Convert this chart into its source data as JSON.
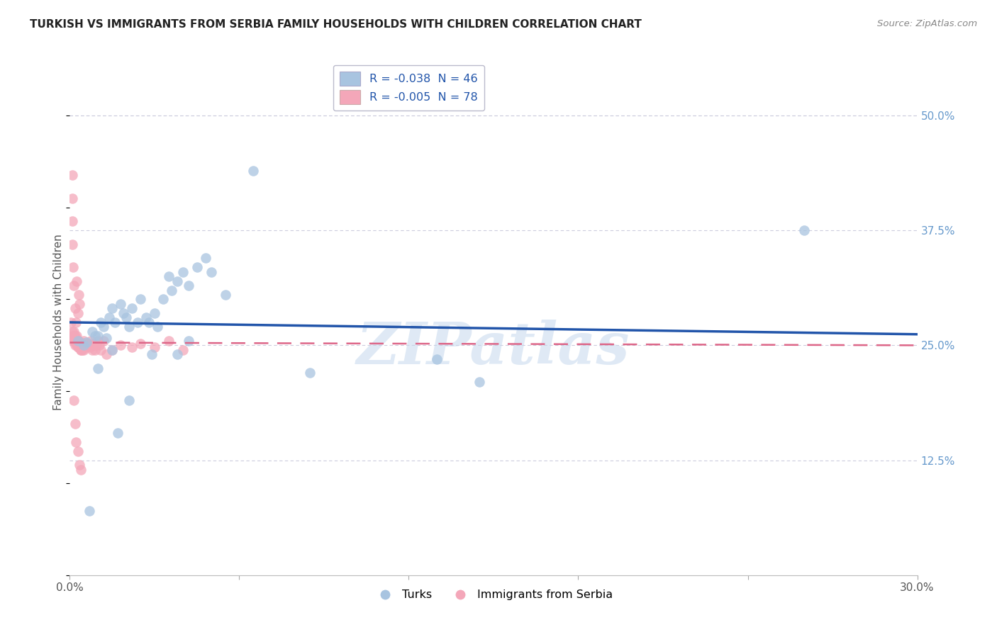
{
  "title": "TURKISH VS IMMIGRANTS FROM SERBIA FAMILY HOUSEHOLDS WITH CHILDREN CORRELATION CHART",
  "source": "Source: ZipAtlas.com",
  "ylabel": "Family Households with Children",
  "watermark": "ZIPatlas",
  "legend_blue_R": "-0.038",
  "legend_blue_N": "46",
  "legend_pink_R": "-0.005",
  "legend_pink_N": "78",
  "xlim": [
    0.0,
    30.0
  ],
  "ylim": [
    0.0,
    55.0
  ],
  "x_ticks": [
    0.0,
    6.0,
    12.0,
    18.0,
    24.0,
    30.0
  ],
  "x_tick_labels": [
    "0.0%",
    "",
    "",
    "",
    "",
    "30.0%"
  ],
  "y_ticks_right": [
    12.5,
    25.0,
    37.5,
    50.0
  ],
  "y_tick_labels_right": [
    "12.5%",
    "25.0%",
    "37.5%",
    "50.0%"
  ],
  "blue_color": "#a8c4e0",
  "pink_color": "#f4a7b9",
  "blue_line_color": "#2255aa",
  "pink_line_color": "#dd6688",
  "background_color": "#ffffff",
  "grid_color": "#ccccdd",
  "blue_line_x0": 0.0,
  "blue_line_y0": 27.5,
  "blue_line_x1": 30.0,
  "blue_line_y1": 26.2,
  "pink_line_x0": 0.0,
  "pink_line_y0": 25.3,
  "pink_line_x1": 30.0,
  "pink_line_y1": 25.0,
  "blue_scatter_x": [
    0.3,
    0.5,
    0.6,
    0.8,
    0.9,
    1.0,
    1.1,
    1.2,
    1.3,
    1.4,
    1.5,
    1.6,
    1.8,
    1.9,
    2.0,
    2.1,
    2.2,
    2.4,
    2.5,
    2.7,
    2.8,
    3.0,
    3.1,
    3.3,
    3.5,
    3.6,
    3.8,
    4.0,
    4.2,
    4.5,
    4.8,
    5.0,
    5.5,
    6.5,
    8.5,
    13.0,
    14.5,
    26.0,
    1.5,
    3.8,
    4.2,
    2.9,
    1.0,
    2.1,
    1.7,
    0.7
  ],
  "blue_scatter_y": [
    25.5,
    25.0,
    25.3,
    26.5,
    26.0,
    26.0,
    27.5,
    27.0,
    25.8,
    28.0,
    29.0,
    27.5,
    29.5,
    28.5,
    28.0,
    27.0,
    29.0,
    27.5,
    30.0,
    28.0,
    27.5,
    28.5,
    27.0,
    30.0,
    32.5,
    31.0,
    32.0,
    33.0,
    31.5,
    33.5,
    34.5,
    33.0,
    30.5,
    44.0,
    22.0,
    23.5,
    21.0,
    37.5,
    24.5,
    24.0,
    25.5,
    24.0,
    22.5,
    19.0,
    15.5,
    7.0
  ],
  "pink_scatter_x": [
    0.05,
    0.08,
    0.1,
    0.1,
    0.12,
    0.12,
    0.15,
    0.15,
    0.18,
    0.18,
    0.2,
    0.2,
    0.22,
    0.22,
    0.25,
    0.25,
    0.28,
    0.28,
    0.3,
    0.3,
    0.32,
    0.32,
    0.35,
    0.35,
    0.38,
    0.38,
    0.4,
    0.4,
    0.43,
    0.43,
    0.45,
    0.48,
    0.5,
    0.5,
    0.53,
    0.55,
    0.58,
    0.6,
    0.63,
    0.65,
    0.7,
    0.72,
    0.75,
    0.8,
    0.82,
    0.85,
    0.9,
    0.95,
    1.0,
    1.05,
    1.1,
    1.2,
    1.3,
    1.5,
    1.8,
    2.2,
    2.5,
    3.0,
    3.5,
    4.0,
    0.08,
    0.1,
    0.12,
    0.15,
    0.18,
    0.22,
    0.25,
    0.28,
    0.32,
    0.35,
    0.08,
    0.1,
    0.13,
    0.18,
    0.22,
    0.3,
    0.35,
    0.4
  ],
  "pink_scatter_y": [
    27.5,
    26.5,
    26.0,
    25.8,
    26.0,
    25.5,
    26.5,
    25.5,
    26.0,
    25.5,
    25.5,
    25.0,
    25.8,
    25.2,
    26.0,
    25.0,
    25.5,
    24.8,
    25.5,
    25.2,
    25.0,
    24.8,
    25.2,
    24.8,
    25.0,
    24.5,
    25.3,
    24.5,
    25.0,
    24.5,
    25.0,
    24.8,
    25.5,
    24.5,
    25.0,
    25.2,
    25.0,
    24.8,
    25.2,
    25.0,
    25.0,
    24.8,
    25.5,
    24.5,
    25.2,
    25.0,
    24.5,
    25.0,
    25.5,
    25.0,
    24.5,
    25.5,
    24.0,
    24.5,
    25.0,
    24.8,
    25.2,
    24.8,
    25.5,
    24.5,
    38.5,
    36.0,
    33.5,
    31.5,
    29.0,
    27.5,
    32.0,
    28.5,
    30.5,
    29.5,
    43.5,
    41.0,
    19.0,
    16.5,
    14.5,
    13.5,
    12.0,
    11.5
  ]
}
